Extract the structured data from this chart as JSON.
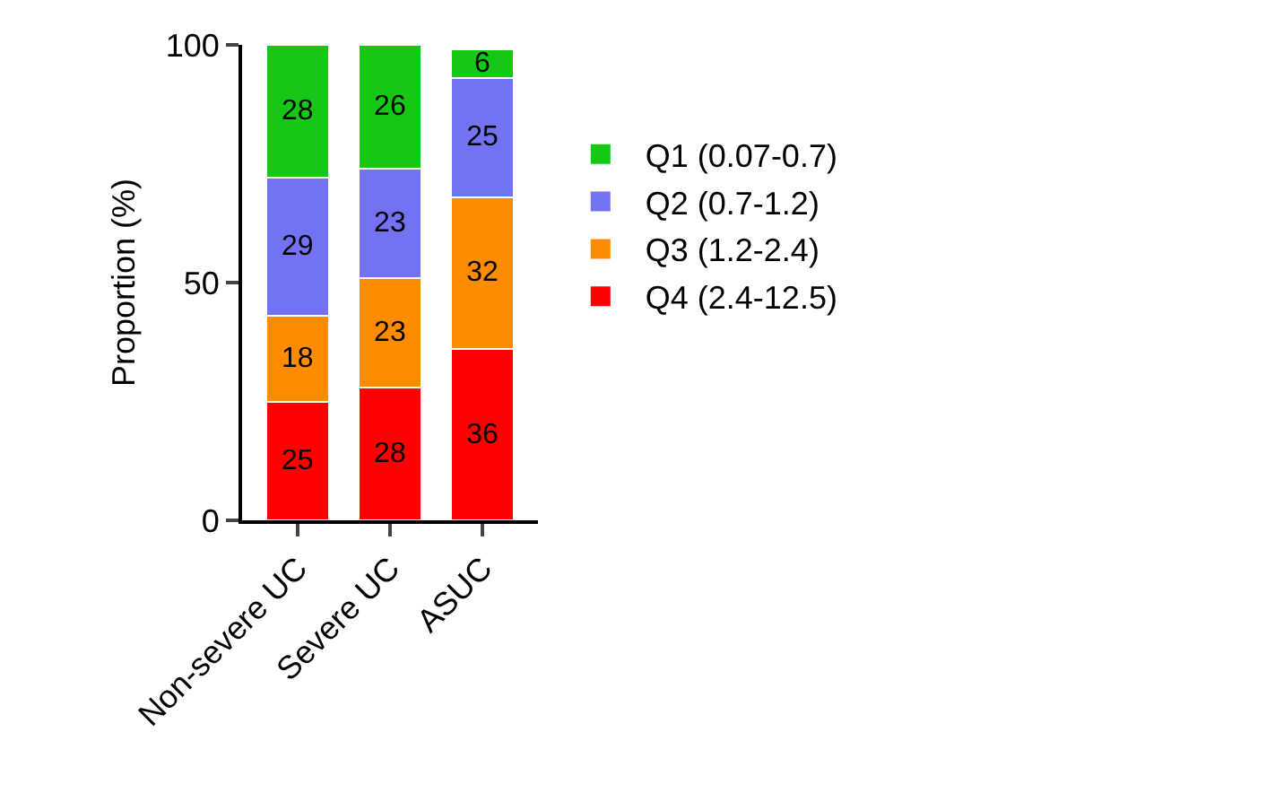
{
  "chart_data": {
    "type": "bar",
    "stacked": true,
    "ylabel": "Proportion (%)",
    "categories": [
      "Non-severe UC",
      "Severe UC",
      "ASUC"
    ],
    "series": [
      {
        "name": "Q4 (2.4-12.5)",
        "color": "#ff0000",
        "values": [
          25,
          28,
          36
        ]
      },
      {
        "name": "Q3 (1.2-2.4)",
        "color": "#ff8c00",
        "values": [
          18,
          23,
          32
        ]
      },
      {
        "name": "Q2 (0.7-1.2)",
        "color": "#7272f2",
        "values": [
          29,
          23,
          25
        ]
      },
      {
        "name": "Q1 (0.07-0.7)",
        "color": "#14c814",
        "values": [
          28,
          26,
          6
        ]
      }
    ],
    "ylim": [
      0,
      100
    ],
    "yticks": [
      0,
      50,
      100
    ],
    "grid": false,
    "legend": "right",
    "data_labels": true
  }
}
